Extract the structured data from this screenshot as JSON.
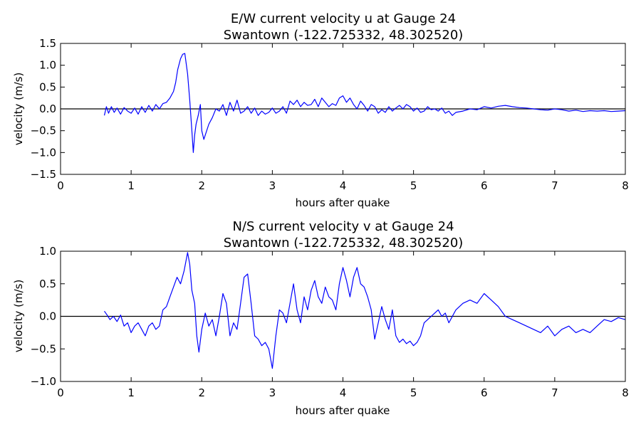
{
  "chart_data": [
    {
      "type": "line",
      "title": "E/W current velocity u at Gauge 24",
      "subtitle": "Swantown  (-122.725332, 48.302520)",
      "xlabel": "hours after quake",
      "ylabel": "velocity (m/s)",
      "xlim": [
        0,
        8
      ],
      "ylim": [
        -1.5,
        1.5
      ],
      "xticks": [
        0,
        1,
        2,
        3,
        4,
        5,
        6,
        7,
        8
      ],
      "yticks": [
        -1.5,
        -1.0,
        -0.5,
        0.0,
        0.5,
        1.0,
        1.5
      ],
      "xtick_labels": [
        "0",
        "1",
        "2",
        "3",
        "4",
        "5",
        "6",
        "7",
        "8"
      ],
      "ytick_labels": [
        "−1.5",
        "−1.0",
        "−0.5",
        "0.0",
        "0.5",
        "1.0",
        "1.5"
      ],
      "reference_line_y": 0,
      "series": [
        {
          "color": "#0000ff",
          "x": [
            0.62,
            0.65,
            0.68,
            0.72,
            0.76,
            0.8,
            0.85,
            0.9,
            0.95,
            1.0,
            1.05,
            1.1,
            1.15,
            1.2,
            1.25,
            1.3,
            1.35,
            1.4,
            1.45,
            1.5,
            1.55,
            1.6,
            1.63,
            1.66,
            1.7,
            1.73,
            1.76,
            1.8,
            1.83,
            1.86,
            1.88,
            1.9,
            1.92,
            1.95,
            1.98,
            2.0,
            2.03,
            2.06,
            2.1,
            2.15,
            2.2,
            2.25,
            2.3,
            2.35,
            2.4,
            2.45,
            2.5,
            2.55,
            2.6,
            2.65,
            2.7,
            2.75,
            2.8,
            2.85,
            2.9,
            2.95,
            3.0,
            3.05,
            3.1,
            3.15,
            3.2,
            3.25,
            3.3,
            3.35,
            3.4,
            3.45,
            3.5,
            3.55,
            3.6,
            3.65,
            3.7,
            3.75,
            3.8,
            3.85,
            3.9,
            3.95,
            4.0,
            4.05,
            4.1,
            4.15,
            4.2,
            4.25,
            4.3,
            4.35,
            4.4,
            4.45,
            4.5,
            4.55,
            4.6,
            4.65,
            4.7,
            4.75,
            4.8,
            4.85,
            4.9,
            4.95,
            5.0,
            5.05,
            5.1,
            5.15,
            5.2,
            5.25,
            5.3,
            5.35,
            5.4,
            5.45,
            5.5,
            5.55,
            5.6,
            5.7,
            5.8,
            5.9,
            6.0,
            6.1,
            6.2,
            6.3,
            6.4,
            6.5,
            6.6,
            6.7,
            6.8,
            6.9,
            7.0,
            7.1,
            7.2,
            7.3,
            7.4,
            7.5,
            7.6,
            7.7,
            7.8,
            7.9,
            8.0
          ],
          "y": [
            -0.15,
            0.05,
            -0.1,
            0.05,
            -0.08,
            0.02,
            -0.12,
            0.03,
            -0.05,
            -0.1,
            0.02,
            -0.12,
            0.05,
            -0.08,
            0.08,
            -0.05,
            0.1,
            0.0,
            0.12,
            0.15,
            0.25,
            0.4,
            0.6,
            0.9,
            1.15,
            1.25,
            1.27,
            0.8,
            0.2,
            -0.5,
            -1.0,
            -0.6,
            -0.35,
            -0.15,
            0.1,
            -0.5,
            -0.7,
            -0.55,
            -0.35,
            -0.2,
            0.0,
            -0.05,
            0.1,
            -0.15,
            0.15,
            -0.05,
            0.2,
            -0.1,
            -0.05,
            0.05,
            -0.1,
            0.02,
            -0.15,
            -0.05,
            -0.12,
            -0.08,
            0.02,
            -0.1,
            -0.05,
            0.05,
            -0.1,
            0.18,
            0.1,
            0.2,
            0.05,
            0.15,
            0.08,
            0.1,
            0.22,
            0.05,
            0.25,
            0.15,
            0.05,
            0.12,
            0.08,
            0.25,
            0.3,
            0.15,
            0.25,
            0.1,
            0.0,
            0.18,
            0.08,
            -0.05,
            0.1,
            0.05,
            -0.1,
            -0.02,
            -0.08,
            0.05,
            -0.05,
            0.02,
            0.08,
            0.0,
            0.1,
            0.05,
            -0.05,
            0.02,
            -0.08,
            -0.05,
            0.05,
            -0.02,
            0.0,
            -0.05,
            0.02,
            -0.1,
            -0.05,
            -0.15,
            -0.08,
            -0.05,
            0.0,
            -0.02,
            0.05,
            0.02,
            0.06,
            0.08,
            0.05,
            0.03,
            0.02,
            0.0,
            -0.02,
            -0.03,
            0.0,
            -0.02,
            -0.05,
            -0.03,
            -0.06,
            -0.04,
            -0.05,
            -0.04,
            -0.06,
            -0.05,
            -0.04
          ]
        }
      ]
    },
    {
      "type": "line",
      "title": "N/S current velocity v at Gauge 24",
      "subtitle": "Swantown  (-122.725332, 48.302520)",
      "xlabel": "hours after quake",
      "ylabel": "velocity (m/s)",
      "xlim": [
        0,
        8
      ],
      "ylim": [
        -1.0,
        1.0
      ],
      "xticks": [
        0,
        1,
        2,
        3,
        4,
        5,
        6,
        7,
        8
      ],
      "yticks": [
        -1.0,
        -0.5,
        0.0,
        0.5,
        1.0
      ],
      "xtick_labels": [
        "0",
        "1",
        "2",
        "3",
        "4",
        "5",
        "6",
        "7",
        "8"
      ],
      "ytick_labels": [
        "−1.0",
        "−0.5",
        "0.0",
        "0.5",
        "1.0"
      ],
      "reference_line_y": 0,
      "series": [
        {
          "color": "#0000ff",
          "x": [
            0.62,
            0.66,
            0.7,
            0.75,
            0.8,
            0.85,
            0.9,
            0.95,
            1.0,
            1.05,
            1.1,
            1.15,
            1.2,
            1.25,
            1.3,
            1.35,
            1.4,
            1.45,
            1.5,
            1.55,
            1.6,
            1.65,
            1.7,
            1.75,
            1.8,
            1.83,
            1.86,
            1.9,
            1.93,
            1.96,
            2.0,
            2.05,
            2.1,
            2.15,
            2.2,
            2.25,
            2.3,
            2.35,
            2.4,
            2.45,
            2.5,
            2.55,
            2.6,
            2.65,
            2.7,
            2.75,
            2.8,
            2.85,
            2.9,
            2.95,
            3.0,
            3.05,
            3.1,
            3.15,
            3.2,
            3.25,
            3.3,
            3.35,
            3.4,
            3.45,
            3.5,
            3.55,
            3.6,
            3.65,
            3.7,
            3.75,
            3.8,
            3.85,
            3.9,
            3.95,
            4.0,
            4.05,
            4.1,
            4.15,
            4.2,
            4.25,
            4.3,
            4.35,
            4.4,
            4.45,
            4.5,
            4.55,
            4.6,
            4.65,
            4.7,
            4.75,
            4.8,
            4.85,
            4.9,
            4.95,
            5.0,
            5.05,
            5.1,
            5.15,
            5.2,
            5.25,
            5.3,
            5.35,
            5.4,
            5.45,
            5.5,
            5.6,
            5.7,
            5.8,
            5.9,
            6.0,
            6.1,
            6.2,
            6.3,
            6.4,
            6.5,
            6.6,
            6.7,
            6.8,
            6.9,
            7.0,
            7.1,
            7.2,
            7.3,
            7.4,
            7.5,
            7.6,
            7.7,
            7.8,
            7.9,
            8.0
          ],
          "y": [
            0.08,
            0.02,
            -0.05,
            0.0,
            -0.08,
            0.02,
            -0.15,
            -0.1,
            -0.25,
            -0.15,
            -0.1,
            -0.2,
            -0.3,
            -0.15,
            -0.1,
            -0.2,
            -0.15,
            0.1,
            0.15,
            0.3,
            0.45,
            0.6,
            0.5,
            0.7,
            0.98,
            0.8,
            0.4,
            0.2,
            -0.3,
            -0.55,
            -0.2,
            0.05,
            -0.15,
            -0.05,
            -0.3,
            0.0,
            0.35,
            0.2,
            -0.3,
            -0.1,
            -0.2,
            0.2,
            0.6,
            0.65,
            0.2,
            -0.3,
            -0.35,
            -0.45,
            -0.4,
            -0.5,
            -0.8,
            -0.3,
            0.1,
            0.05,
            -0.1,
            0.2,
            0.5,
            0.1,
            -0.1,
            0.3,
            0.1,
            0.4,
            0.55,
            0.3,
            0.2,
            0.45,
            0.3,
            0.25,
            0.1,
            0.5,
            0.75,
            0.55,
            0.3,
            0.6,
            0.75,
            0.5,
            0.45,
            0.3,
            0.1,
            -0.35,
            -0.1,
            0.15,
            -0.05,
            -0.2,
            0.1,
            -0.3,
            -0.4,
            -0.35,
            -0.42,
            -0.38,
            -0.45,
            -0.4,
            -0.3,
            -0.1,
            -0.05,
            0.0,
            0.05,
            0.1,
            0.0,
            0.05,
            -0.1,
            0.1,
            0.2,
            0.25,
            0.2,
            0.35,
            0.25,
            0.15,
            0.0,
            -0.05,
            -0.1,
            -0.15,
            -0.2,
            -0.25,
            -0.15,
            -0.3,
            -0.2,
            -0.15,
            -0.25,
            -0.2,
            -0.25,
            -0.15,
            -0.05,
            -0.08,
            -0.02,
            -0.05
          ]
        }
      ]
    }
  ]
}
